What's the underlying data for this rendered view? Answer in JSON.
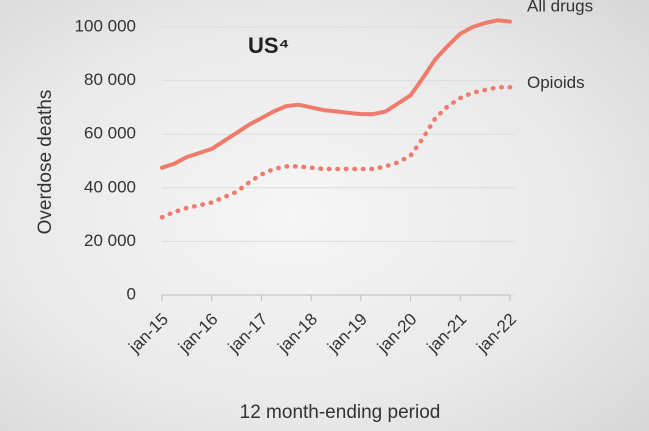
{
  "chart_data": {
    "type": "line",
    "title": "US⁴",
    "y_label": "Overdose deaths",
    "x_label": "12 month-ending period",
    "categories": [
      "jan-15",
      null,
      null,
      null,
      "jan-16",
      null,
      null,
      null,
      "jan-17",
      null,
      null,
      null,
      "jan-18",
      null,
      null,
      null,
      "jan-19",
      null,
      null,
      null,
      "jan-20",
      null,
      null,
      null,
      "jan-21",
      null,
      null,
      null,
      "jan-22"
    ],
    "series": [
      {
        "name": "All drugs",
        "color": "#ef7b6b",
        "style": "solid",
        "values": [
          47500,
          49000,
          51500,
          53000,
          54500,
          57500,
          60500,
          63500,
          66000,
          68500,
          70500,
          71000,
          70000,
          69000,
          68500,
          68000,
          67500,
          67500,
          68500,
          71500,
          74500,
          81000,
          88000,
          93000,
          97500,
          100000,
          101500,
          102500,
          102000
        ]
      },
      {
        "name": "Opioids",
        "color": "#ef7b6b",
        "style": "dotted",
        "values": [
          29000,
          31000,
          32500,
          33500,
          34500,
          36500,
          38500,
          42000,
          45000,
          47000,
          48000,
          48000,
          47500,
          47000,
          47000,
          47000,
          47000,
          47000,
          48000,
          49500,
          52000,
          58500,
          66000,
          70500,
          73500,
          75500,
          76500,
          77500,
          77500
        ]
      }
    ],
    "ylim": [
      0,
      100000
    ],
    "yticks": [
      0,
      {
        "value": 20000,
        "label": "20 000"
      },
      {
        "value": 40000,
        "label": "40 000"
      },
      {
        "value": 60000,
        "label": "60 000"
      },
      {
        "value": 80000,
        "label": "80 000"
      },
      {
        "value": 100000,
        "label": "100 000"
      }
    ],
    "grid": true
  }
}
